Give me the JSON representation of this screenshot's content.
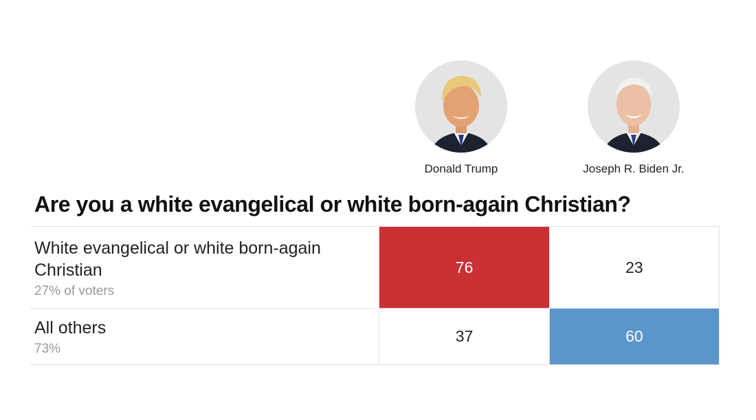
{
  "candidates": [
    {
      "name": "Donald Trump",
      "icon": "trump-portrait-icon"
    },
    {
      "name": "Joseph R. Biden Jr.",
      "icon": "biden-portrait-icon"
    }
  ],
  "question": "Are you a white evangelical or white born-again Christian?",
  "colors": {
    "trump_strong": "#c93135",
    "trump_light": "#fbe0e1",
    "biden_strong": "#5a95cc",
    "neutral": "#ffffff"
  },
  "chart_data": {
    "type": "table",
    "title": "Are you a white evangelical or white born-again Christian?",
    "columns": [
      "Donald Trump",
      "Joseph R. Biden Jr."
    ],
    "rows": [
      {
        "label": "White evangelical or white born-again Christian",
        "share": "27% of voters",
        "values": [
          "76",
          "23"
        ]
      },
      {
        "label": "All others",
        "share": "73%",
        "values": [
          "37",
          "60"
        ]
      }
    ]
  }
}
